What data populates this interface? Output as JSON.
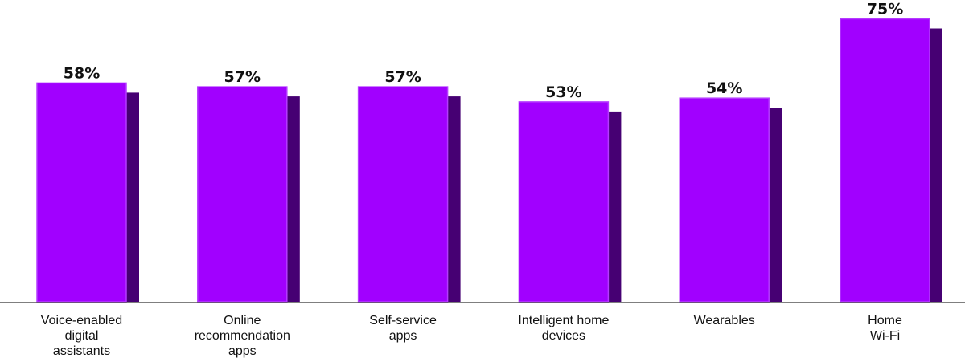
{
  "chart_data": {
    "type": "bar",
    "categories": [
      [
        "Voice-enabled",
        "digital",
        "assistants"
      ],
      [
        "Online",
        "recommendation",
        "apps"
      ],
      [
        "Self-service",
        "apps"
      ],
      [
        "Intelligent home",
        "devices"
      ],
      [
        "Wearables"
      ],
      [
        "Home",
        "Wi-Fi"
      ]
    ],
    "series": [
      {
        "values": [
          58,
          57,
          57,
          53,
          54,
          75
        ],
        "labels": [
          "58%",
          "57%",
          "57%",
          "53%",
          "54%",
          "75%"
        ]
      }
    ],
    "ylim": [
      0,
      100
    ],
    "grid": false,
    "legend": "none",
    "colors": {
      "bar_front": "#A100FF",
      "bar_front_edge": "#B43BFF",
      "bar_shadow": "#460073",
      "axis": "#555555",
      "text": "#111111"
    }
  }
}
